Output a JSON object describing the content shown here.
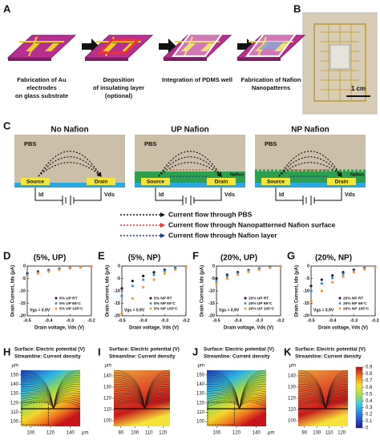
{
  "panel_labels": [
    "A",
    "B",
    "C",
    "D",
    "E",
    "F",
    "G",
    "H",
    "I",
    "J",
    "K"
  ],
  "fabrication": {
    "steps": [
      [
        "Fabrication of Au",
        "electrodes",
        "on glass substrate"
      ],
      [
        "Deposition",
        "of insulating layer",
        "(optional)"
      ],
      [
        "Integration of PDMS well"
      ],
      [
        "Fabrication of Nafion",
        "Nanopatterns"
      ]
    ]
  },
  "photo": {
    "scale_bar": "1 cm"
  },
  "schematic": {
    "panels": [
      {
        "title": "No Nafion",
        "pbs": "PBS",
        "source": "Source",
        "drain": "Drain",
        "current": "Id",
        "voltage": "Vds"
      },
      {
        "title": "UP Nafion",
        "pbs": "PBS",
        "source": "Source",
        "drain": "Drain",
        "current": "Id",
        "voltage": "Vds",
        "nafion": "Nafion"
      },
      {
        "title": "NP Nafion",
        "pbs": "PBS",
        "source": "Source",
        "drain": "Drain",
        "current": "Id",
        "voltage": "Vds",
        "nafion": "Nafion"
      }
    ],
    "legend": [
      {
        "text": "Current flow through PBS",
        "color": "#111111"
      },
      {
        "text": "Current flow through Nanopatterned Nafion surface",
        "color": "#e53935"
      },
      {
        "text": "Current flow through Nafion layer",
        "color": "#1a3a8a"
      }
    ]
  },
  "chart_data": [
    {
      "type": "scatter",
      "title": "(5%, UP)",
      "x_label": "Drain voltage, Vds (V)",
      "y_label": "Drain Current, Ids (μA)",
      "annotation": "Vgs = 0.9V",
      "x": [
        -0.5,
        -0.45,
        -0.4,
        -0.35,
        -0.3,
        -0.25,
        -0.2
      ],
      "series": [
        {
          "name": "5% UP RT",
          "color": "#1a1a2e",
          "values": [
            -3,
            -2.2,
            -1.6,
            -1.1,
            -0.7,
            -0.4,
            -0.1
          ]
        },
        {
          "name": "5% UP 65°C",
          "color": "#3a8fd8",
          "values": [
            -3.5,
            -2.6,
            -1.9,
            -1.3,
            -0.8,
            -0.4,
            -0.1
          ]
        },
        {
          "name": "5% UP 105°C",
          "color": "#f29a3a",
          "values": [
            -4,
            -3,
            -2.2,
            -1.5,
            -0.9,
            -0.5,
            -0.1
          ]
        }
      ],
      "xlim": [
        -0.5,
        -0.2
      ],
      "xticks": [
        -0.5,
        -0.4,
        -0.3,
        -0.2
      ],
      "ylim": [
        -20,
        0
      ],
      "yticks": [
        -20,
        -15,
        -10,
        -5,
        0
      ]
    },
    {
      "type": "scatter",
      "title": "(5%, NP)",
      "x_label": "Drain voltage, Vds (V)",
      "y_label": "Drain Current, Ids (μA)",
      "annotation": "Vgs = 0.9V",
      "x": [
        -0.5,
        -0.45,
        -0.4,
        -0.35,
        -0.3,
        -0.25,
        -0.2
      ],
      "series": [
        {
          "name": "5% NP RT",
          "color": "#1a1a2e",
          "values": [
            -9,
            -6,
            -4,
            -2.5,
            -1.5,
            -0.8,
            -0.2
          ]
        },
        {
          "name": "5% NP 65°C",
          "color": "#3a8fd8",
          "values": [
            -12,
            -8,
            -5.5,
            -3.5,
            -2,
            -1,
            -0.2
          ]
        },
        {
          "name": "5% NP 105°C",
          "color": "#f29a3a",
          "values": [
            -19,
            -13,
            -8.5,
            -5.5,
            -3,
            -1.5,
            -0.3
          ]
        }
      ],
      "xlim": [
        -0.5,
        -0.2
      ],
      "xticks": [
        -0.5,
        -0.4,
        -0.3,
        -0.2
      ],
      "ylim": [
        -20,
        0
      ],
      "yticks": [
        -20,
        -15,
        -10,
        -5,
        0
      ]
    },
    {
      "type": "scatter",
      "title": "(20%, UP)",
      "x_label": "Drain voltage, Vds (V)",
      "y_label": "Drain Current, Ids (μA)",
      "annotation": "Vgs = 0.9V",
      "x": [
        -0.5,
        -0.45,
        -0.4,
        -0.35,
        -0.3,
        -0.25,
        -0.2
      ],
      "series": [
        {
          "name": "20% UP RT",
          "color": "#1a1a2e",
          "values": [
            -5,
            -3.5,
            -2.5,
            -1.7,
            -1,
            -0.5,
            -0.1
          ]
        },
        {
          "name": "20% UP 65°C",
          "color": "#3a8fd8",
          "values": [
            -6,
            -4.2,
            -3,
            -2,
            -1.2,
            -0.6,
            -0.1
          ]
        },
        {
          "name": "20% UP 105°C",
          "color": "#f29a3a",
          "values": [
            -7,
            -5,
            -3.5,
            -2.3,
            -1.4,
            -0.7,
            -0.2
          ]
        }
      ],
      "xlim": [
        -0.5,
        -0.2
      ],
      "xticks": [
        -0.5,
        -0.4,
        -0.3,
        -0.2
      ],
      "ylim": [
        -20,
        0
      ],
      "yticks": [
        -20,
        -15,
        -10,
        -5,
        0
      ]
    },
    {
      "type": "scatter",
      "title": "(20%, NP)",
      "x_label": "Drain voltage, Vds (V)",
      "y_label": "Drain Current, Ids (μA)",
      "annotation": "Vgs = 0.9V",
      "x": [
        -0.5,
        -0.45,
        -0.4,
        -0.35,
        -0.3,
        -0.25,
        -0.2
      ],
      "series": [
        {
          "name": "20% NP RT",
          "color": "#1a1a2e",
          "values": [
            -8,
            -5.5,
            -3.8,
            -2.5,
            -1.5,
            -0.8,
            -0.2
          ]
        },
        {
          "name": "20% NP 65°C",
          "color": "#3a8fd8",
          "values": [
            -10,
            -7,
            -4.8,
            -3.2,
            -2,
            -1,
            -0.2
          ]
        },
        {
          "name": "20% NP 105°C",
          "color": "#f29a3a",
          "values": [
            -14,
            -10,
            -6.5,
            -4.2,
            -2.5,
            -1.3,
            -0.3
          ]
        }
      ],
      "xlim": [
        -0.5,
        -0.2
      ],
      "xticks": [
        -0.5,
        -0.4,
        -0.3,
        -0.2
      ],
      "ylim": [
        -20,
        0
      ],
      "yticks": [
        -20,
        -15,
        -10,
        -5,
        0
      ]
    }
  ],
  "maps": [
    {
      "title": [
        "Surface: Electric potential (V)",
        "Streamline: Current density"
      ],
      "unit": "μm",
      "style": "rainbow",
      "xlim": [
        90,
        150
      ],
      "xticks": [
        100,
        120,
        140
      ],
      "ylim": [
        95,
        155
      ],
      "yticks": [
        100,
        110,
        120,
        130,
        140,
        150
      ]
    },
    {
      "title": [
        "Surface: Electric potential (V)",
        "Streamline: Current density"
      ],
      "unit": "μm",
      "style": "hot",
      "xlim": [
        85,
        125
      ],
      "xticks": [
        90,
        100,
        110,
        120
      ],
      "ylim": [
        95,
        145
      ],
      "yticks": [
        100,
        110,
        120,
        130,
        140
      ]
    },
    {
      "title": [
        "Surface: Electric potential (V)",
        "Streamline: Current density"
      ],
      "unit": "μm",
      "style": "rainbow",
      "xlim": [
        90,
        150
      ],
      "xticks": [
        100,
        120,
        140
      ],
      "ylim": [
        95,
        155
      ],
      "yticks": [
        100,
        110,
        120,
        130,
        140,
        150
      ]
    },
    {
      "title": [
        "Surface: Electric potential (V)",
        "Streamline: Current density"
      ],
      "unit": "μm",
      "style": "hot",
      "xlim": [
        85,
        125
      ],
      "xticks": [
        90,
        100,
        110,
        120
      ],
      "ylim": [
        95,
        145
      ],
      "yticks": [
        100,
        110,
        120,
        130,
        140
      ]
    }
  ],
  "colorbar": {
    "lim": [
      0,
      0.9
    ],
    "ticks": [
      0,
      0.1,
      0.2,
      0.3,
      0.4,
      0.5,
      0.6,
      0.7,
      0.8,
      0.9
    ]
  }
}
